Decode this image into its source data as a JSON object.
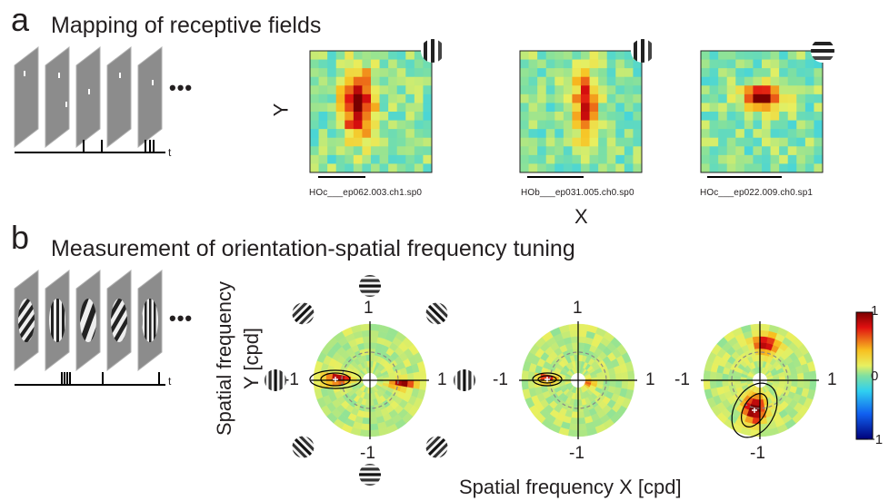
{
  "panel_a": {
    "letter": "a",
    "title": "Mapping of receptive fields",
    "axis_y": "Y",
    "axis_x": "X",
    "time_label": "t",
    "ellipsis": "•••",
    "cells": [
      {
        "label": "HOc___ep062.003.ch1.sp0",
        "gabor": "vertical-grating-icon"
      },
      {
        "label": "HOb___ep031.005.ch0.sp0",
        "gabor": "vertical-grating-icon"
      },
      {
        "label": "HOc___ep022.009.ch0.sp1",
        "gabor": "horizontal-grating-icon"
      }
    ]
  },
  "panel_b": {
    "letter": "b",
    "title": "Measurement of orientation-spatial frequency tuning",
    "axis_x": "Spatial frequency X [cpd]",
    "axis_y_line1": "Spatial frequency",
    "axis_y_line2": "Y [cpd]",
    "time_label": "t",
    "ellipsis": "•••",
    "tick_pos": "1",
    "tick_neg": "-1",
    "colorbar": {
      "max": "1",
      "mid": "0",
      "min": "−1"
    }
  },
  "colors": {
    "background_map": "#7fd0a8",
    "hot": "#c0141e",
    "warm": "#f2a33a",
    "yellow": "#e8e85a",
    "text": "#231f20"
  }
}
